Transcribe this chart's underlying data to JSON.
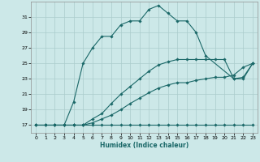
{
  "xlabel": "Humidex (Indice chaleur)",
  "ylabel": "",
  "background_color": "#cce8e8",
  "grid_color": "#aacccc",
  "line_color": "#1a6868",
  "xlim": [
    -0.5,
    23.5
  ],
  "ylim": [
    16.0,
    33.0
  ],
  "yticks": [
    17,
    19,
    21,
    23,
    25,
    27,
    29,
    31
  ],
  "xticks": [
    0,
    1,
    2,
    3,
    4,
    5,
    6,
    7,
    8,
    9,
    10,
    11,
    12,
    13,
    14,
    15,
    16,
    17,
    18,
    19,
    20,
    21,
    22,
    23
  ],
  "series": [
    {
      "x": [
        0,
        1,
        2,
        3,
        4,
        5,
        6,
        7,
        8,
        9,
        10,
        11,
        12,
        13,
        14,
        15,
        16,
        17,
        18,
        19,
        20,
        21,
        22,
        23
      ],
      "y": [
        17,
        17,
        17,
        17,
        17,
        17,
        17,
        17,
        17,
        17,
        17,
        17,
        17,
        17,
        17,
        17,
        17,
        17,
        17,
        17,
        17,
        17,
        17,
        17
      ]
    },
    {
      "x": [
        0,
        1,
        2,
        3,
        4,
        5,
        6,
        7,
        8,
        9,
        10,
        11,
        12,
        13,
        14,
        15,
        16,
        17,
        18,
        19,
        20,
        21,
        22,
        23
      ],
      "y": [
        17,
        17,
        17,
        17,
        17,
        17,
        17.3,
        17.8,
        18.3,
        19.0,
        19.8,
        20.5,
        21.2,
        21.8,
        22.2,
        22.5,
        22.5,
        22.8,
        23.0,
        23.2,
        23.2,
        23.5,
        24.5,
        25.0
      ]
    },
    {
      "x": [
        0,
        1,
        2,
        3,
        4,
        5,
        6,
        7,
        8,
        9,
        10,
        11,
        12,
        13,
        14,
        15,
        16,
        17,
        18,
        19,
        20,
        21,
        22,
        23
      ],
      "y": [
        17,
        17,
        17,
        17,
        17,
        17,
        17.8,
        18.5,
        19.8,
        21.0,
        22.0,
        23.0,
        24.0,
        24.8,
        25.2,
        25.5,
        25.5,
        25.5,
        25.5,
        25.5,
        25.5,
        23.0,
        23.2,
        25.0
      ]
    },
    {
      "x": [
        2,
        3,
        4,
        5,
        6,
        7,
        8,
        9,
        10,
        11,
        12,
        13,
        14,
        15,
        16,
        17,
        18,
        21,
        22,
        23
      ],
      "y": [
        17,
        17,
        20.0,
        25.0,
        27.0,
        28.5,
        28.5,
        30.0,
        30.5,
        30.5,
        32.0,
        32.5,
        31.5,
        30.5,
        30.5,
        29.0,
        26.0,
        23.0,
        23.0,
        25.0
      ]
    }
  ]
}
